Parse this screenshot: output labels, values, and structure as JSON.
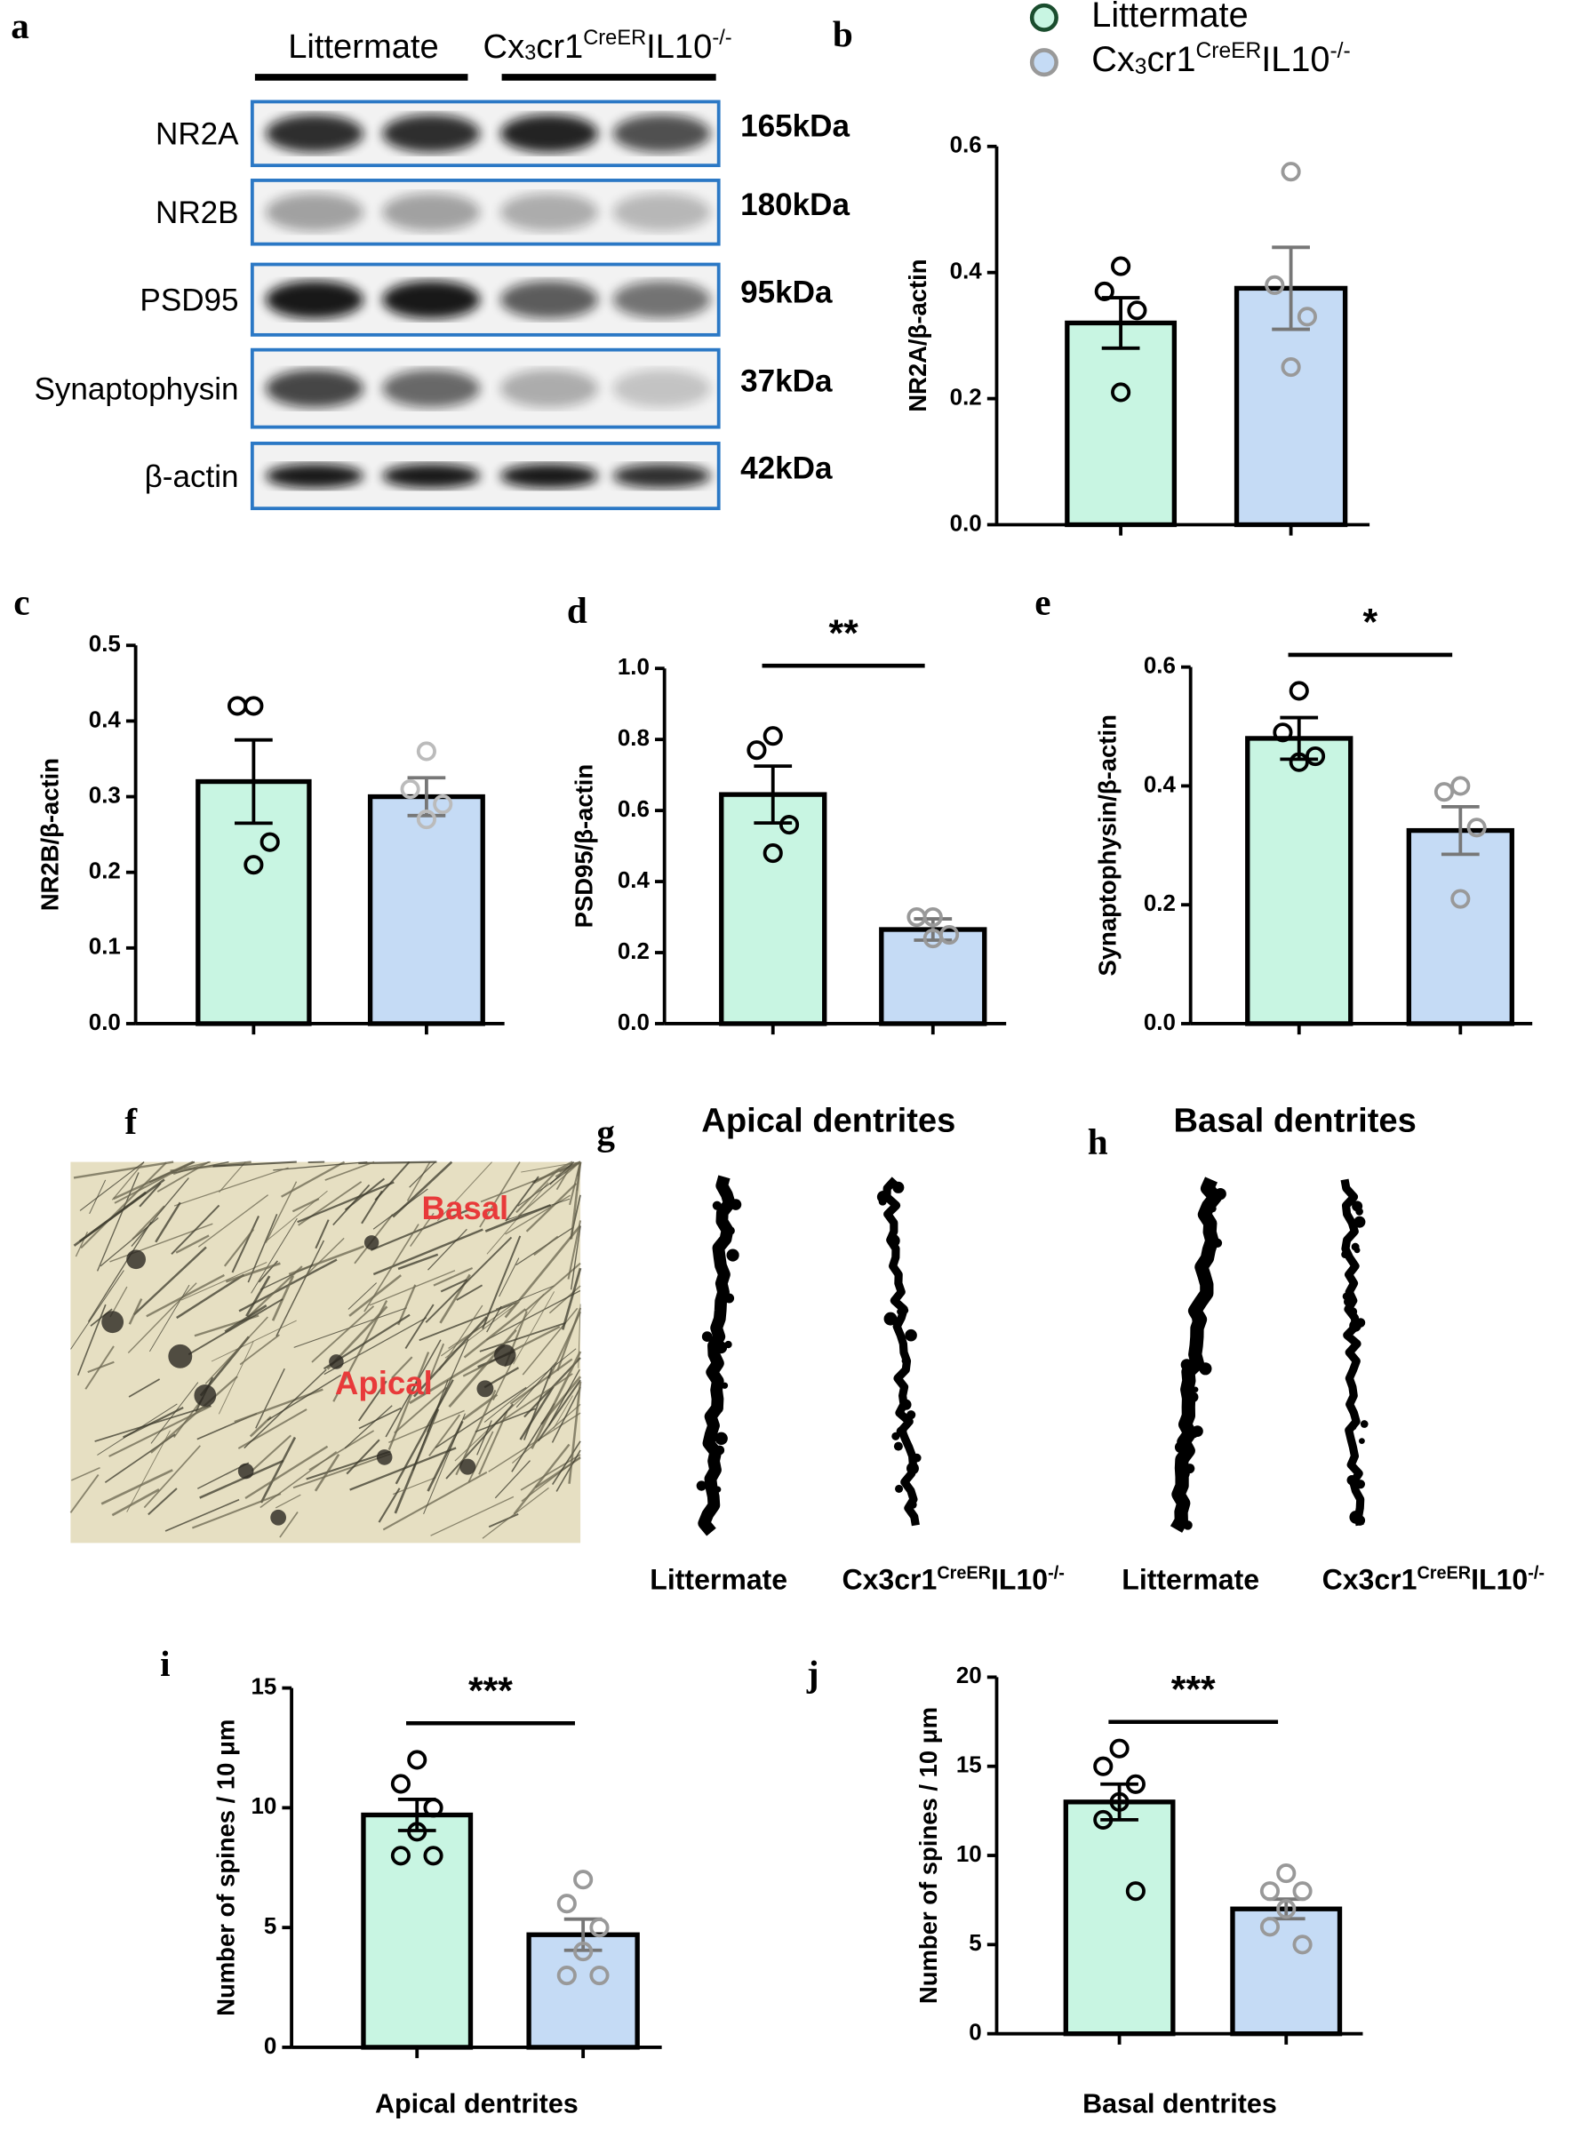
{
  "panels": [
    "a",
    "b",
    "c",
    "d",
    "e",
    "f",
    "g",
    "h",
    "i",
    "j"
  ],
  "blot": {
    "groups": [
      "Littermate",
      [
        {
          "text": "Cx"
        },
        {
          "text": "3",
          "script": "sub"
        },
        {
          "text": "cr1"
        },
        {
          "text": "CreER",
          "script": "sup"
        },
        {
          "text": "IL10"
        },
        {
          "text": "-/-",
          "script": "sup"
        }
      ]
    ],
    "rows": [
      {
        "label": "NR2A",
        "size": "165kDa"
      },
      {
        "label": "NR2B",
        "size": "180kDa"
      },
      {
        "label": "PSD95",
        "size": "95kDa"
      },
      {
        "label": "Synaptophysin",
        "size": "37kDa"
      },
      {
        "label": "β-actin",
        "size": "42kDa"
      }
    ]
  },
  "legend": [
    {
      "name": [
        {
          "text": "Littermate"
        }
      ],
      "color": "#c8f5e2",
      "edge": "#000000"
    },
    {
      "name": [
        {
          "text": "Cx"
        },
        {
          "text": "3",
          "script": "sub"
        },
        {
          "text": "cr1"
        },
        {
          "text": "CreER",
          "script": "sup"
        },
        {
          "text": "IL10"
        },
        {
          "text": "-/-",
          "script": "sup"
        }
      ],
      "color": "#c5dbf5",
      "edge": "#999999"
    }
  ],
  "images": {
    "f": {
      "labels": [
        "Basal",
        "Apical"
      ]
    },
    "g": {
      "title": "Apical dentrites",
      "captions": [
        [
          {
            "text": "Littermate"
          }
        ],
        [
          {
            "text": "Cx3cr1"
          },
          {
            "text": "CreER",
            "script": "sup"
          },
          {
            "text": "IL10"
          },
          {
            "text": "-/-",
            "script": "sup"
          }
        ]
      ]
    },
    "h": {
      "title": "Basal dentrites",
      "captions": [
        [
          {
            "text": "Littermate"
          }
        ],
        [
          {
            "text": "Cx3cr1"
          },
          {
            "text": "CreER",
            "script": "sup"
          },
          {
            "text": "IL10"
          },
          {
            "text": "-/-",
            "script": "sup"
          }
        ]
      ]
    }
  },
  "chart_data": [
    {
      "type": "bar",
      "ylabel": "NR2A/β-actin",
      "categories": [
        null,
        null
      ],
      "values": [
        0.32,
        0.375
      ],
      "errors": [
        0.04,
        0.065
      ],
      "points": [
        [
          0.41,
          0.37,
          0.34,
          0.21
        ],
        [
          0.56,
          0.38,
          0.33,
          0.25
        ]
      ],
      "colors": [
        "#c8f5e2",
        "#c5dbf5"
      ],
      "edge_colors": [
        "#000000",
        "#999999"
      ],
      "ylim": [
        0,
        0.6
      ],
      "yticks": [
        {
          "value": 0,
          "label": "0.0"
        },
        0.2,
        0.4,
        0.6
      ]
    },
    {
      "type": "bar",
      "ylabel": "NR2B/β-actin",
      "categories": [
        null,
        null
      ],
      "values": [
        0.32,
        0.3
      ],
      "errors": [
        0.055,
        0.025
      ],
      "points": [
        [
          0.42,
          0.42,
          0.24,
          0.21
        ],
        [
          0.36,
          0.31,
          0.29,
          0.27
        ]
      ],
      "colors": [
        "#c8f5e2",
        "#c5dbf5"
      ],
      "edge_colors": [
        "#000000",
        "#bbbbbb"
      ],
      "ylim": [
        0,
        0.5
      ],
      "yticks": [
        {
          "value": 0,
          "label": "0.0"
        },
        0.1,
        0.2,
        0.3,
        0.4,
        0.5
      ]
    },
    {
      "type": "bar",
      "ylabel": "PSD95/β-actin",
      "categories": [
        null,
        null
      ],
      "values": [
        0.645,
        0.265
      ],
      "errors": [
        0.08,
        0.03
      ],
      "points": [
        [
          0.81,
          0.77,
          0.56,
          0.48
        ],
        [
          0.3,
          0.3,
          0.25,
          0.24
        ]
      ],
      "colors": [
        "#c8f5e2",
        "#c5dbf5"
      ],
      "edge_colors": [
        "#000000",
        "#999999"
      ],
      "ylim": [
        0,
        1.0
      ],
      "yticks": [
        {
          "value": 0,
          "label": "0.0"
        },
        0.2,
        0.4,
        0.6,
        0.8,
        {
          "value": 1,
          "label": "1.0"
        }
      ],
      "annotation": "**"
    },
    {
      "type": "bar",
      "ylabel": "Synaptophysin/β-actin",
      "categories": [
        null,
        null
      ],
      "values": [
        0.48,
        0.325
      ],
      "errors": [
        0.035,
        0.04
      ],
      "points": [
        [
          0.56,
          0.49,
          0.45,
          0.44
        ],
        [
          0.4,
          0.39,
          0.33,
          0.21
        ]
      ],
      "colors": [
        "#c8f5e2",
        "#c5dbf5"
      ],
      "edge_colors": [
        "#000000",
        "#999999"
      ],
      "ylim": [
        0,
        0.6
      ],
      "yticks": [
        {
          "value": 0,
          "label": "0.0"
        },
        0.2,
        0.4,
        0.6
      ],
      "annotation": "*"
    },
    {
      "type": "bar",
      "ylabel": "Number of spines / 10 μm",
      "xlabel": "Apical dentrites",
      "categories": [
        null,
        null
      ],
      "values": [
        9.7,
        4.7
      ],
      "errors": [
        0.65,
        0.65
      ],
      "points": [
        [
          12,
          11,
          10,
          9,
          8,
          8
        ],
        [
          7,
          6,
          5,
          4,
          3,
          3
        ]
      ],
      "colors": [
        "#c8f5e2",
        "#c5dbf5"
      ],
      "edge_colors": [
        "#000000",
        "#999999"
      ],
      "ylim": [
        0,
        15
      ],
      "yticks": [
        0,
        5,
        10,
        15
      ],
      "annotation": "***"
    },
    {
      "type": "bar",
      "ylabel": "Number of spines / 10 μm",
      "xlabel": "Basal dentrites",
      "categories": [
        null,
        null
      ],
      "values": [
        13,
        7
      ],
      "errors": [
        1.0,
        0.55
      ],
      "points": [
        [
          16,
          15,
          14,
          13,
          12,
          8
        ],
        [
          9,
          8,
          8,
          7,
          6,
          5
        ]
      ],
      "colors": [
        "#c8f5e2",
        "#c5dbf5"
      ],
      "edge_colors": [
        "#000000",
        "#999999"
      ],
      "ylim": [
        0,
        20
      ],
      "yticks": [
        0,
        5,
        10,
        15,
        20
      ],
      "annotation": "***"
    }
  ]
}
